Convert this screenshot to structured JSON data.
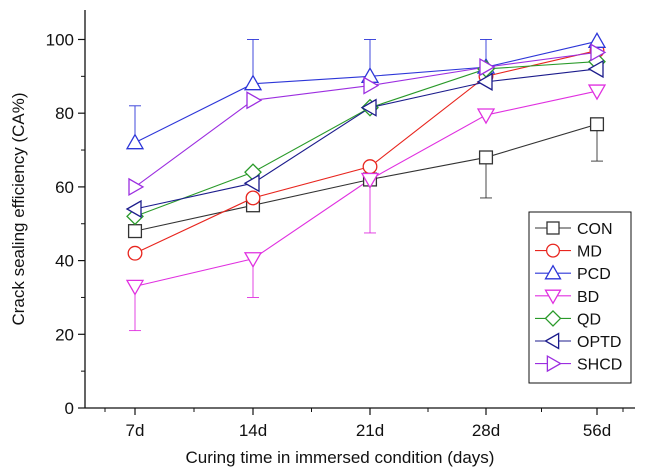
{
  "chart_data": {
    "type": "line",
    "xlabel": "Curing time in immersed condition (days)",
    "ylabel": "Crack sealing efficiency (CA%)",
    "categories": [
      "7d",
      "14d",
      "21d",
      "28d",
      "56d"
    ],
    "ylim": [
      0,
      108
    ],
    "yticks": [
      0,
      20,
      40,
      60,
      80,
      100
    ],
    "legend_position": "bottom-right",
    "series": [
      {
        "name": "CON",
        "marker": "square",
        "color": "#333333",
        "values": [
          48,
          55,
          62,
          68,
          77
        ],
        "err_upper": [
          0,
          0,
          0,
          0,
          0
        ],
        "err_lower": [
          0,
          0,
          0,
          11,
          10
        ]
      },
      {
        "name": "MD",
        "marker": "circle",
        "color": "#e8251e",
        "values": [
          42,
          57,
          65.5,
          90,
          97
        ],
        "err_upper": [
          0,
          0,
          0,
          0,
          0
        ],
        "err_lower": [
          0,
          0,
          0,
          0,
          0
        ]
      },
      {
        "name": "PCD",
        "marker": "triangle-up",
        "color": "#2d36d8",
        "values": [
          72,
          88,
          90,
          92.5,
          99.5
        ],
        "err_upper": [
          10,
          12,
          10,
          7.5,
          0
        ],
        "err_lower": [
          0,
          0,
          0,
          0,
          0
        ]
      },
      {
        "name": "BD",
        "marker": "triangle-down",
        "color": "#e030e0",
        "values": [
          33,
          40.5,
          62,
          79.5,
          86
        ],
        "err_upper": [
          0,
          0,
          0,
          0,
          0
        ],
        "err_lower": [
          12,
          10.5,
          14.5,
          0,
          0
        ]
      },
      {
        "name": "QD",
        "marker": "diamond",
        "color": "#2a9a2a",
        "values": [
          52,
          64,
          81.5,
          92,
          94
        ],
        "err_upper": [
          0,
          0,
          0,
          0,
          0
        ],
        "err_lower": [
          0,
          0,
          0,
          0,
          0
        ]
      },
      {
        "name": "OPTD",
        "marker": "triangle-left",
        "color": "#1c1c8c",
        "values": [
          54,
          61,
          81.5,
          88.5,
          92
        ],
        "err_upper": [
          0,
          0,
          0,
          0,
          0
        ],
        "err_lower": [
          0,
          0,
          0,
          0,
          0
        ]
      },
      {
        "name": "SHCD",
        "marker": "triangle-right",
        "color": "#9c2ee0",
        "values": [
          60,
          83.5,
          87.5,
          92.5,
          96.5
        ],
        "err_upper": [
          0,
          0,
          0,
          0,
          0
        ],
        "err_lower": [
          0,
          0,
          0,
          0,
          0
        ]
      }
    ]
  }
}
